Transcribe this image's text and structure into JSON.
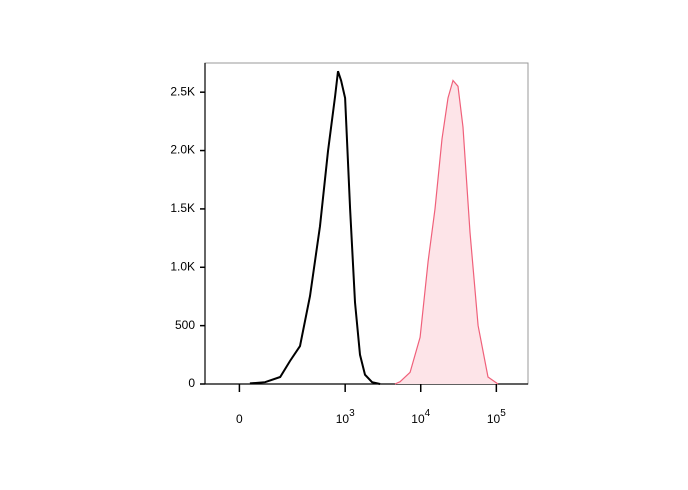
{
  "chart_data": {
    "type": "histogram",
    "xscale": "arcsinh",
    "xlim": [
      -100,
      262144
    ],
    "ylim": [
      0,
      2750
    ],
    "xticks": [
      0,
      {
        "value": 1000,
        "label": "10",
        "exponent": "3"
      },
      {
        "value": 10000,
        "label": "10",
        "exponent": "4"
      },
      {
        "value": 100000,
        "label": "10",
        "exponent": "5"
      }
    ],
    "yticks": [
      0,
      500,
      {
        "value": 1000,
        "label": "1.0K"
      },
      {
        "value": 1500,
        "label": "1.5K"
      },
      {
        "value": 2000,
        "label": "2.0K"
      },
      {
        "value": 2500,
        "label": "2.5K"
      }
    ],
    "series": [
      {
        "color": "#000000",
        "x": [
          26,
          69,
          127,
          178,
          247,
          339,
          462,
          592,
          734,
          804,
          882,
          997,
          1161,
          1352,
          1574,
          1833,
          2271,
          2899
        ],
        "values": [
          5,
          15,
          60,
          197,
          325,
          753,
          1353,
          1995,
          2466,
          2680,
          2600,
          2450,
          1500,
          700,
          250,
          80,
          15,
          0
        ]
      },
      {
        "color": "#f0607a",
        "fill": "#fde4e8",
        "x": [
          4574,
          5327,
          7225,
          9800,
          12500,
          15450,
          19130,
          22960,
          26740,
          31130,
          36260,
          44860,
          57280,
          77620,
          105200
        ],
        "values": [
          0,
          20,
          100,
          400,
          1050,
          1500,
          2100,
          2450,
          2600,
          2550,
          2200,
          1300,
          500,
          60,
          0
        ]
      }
    ]
  }
}
